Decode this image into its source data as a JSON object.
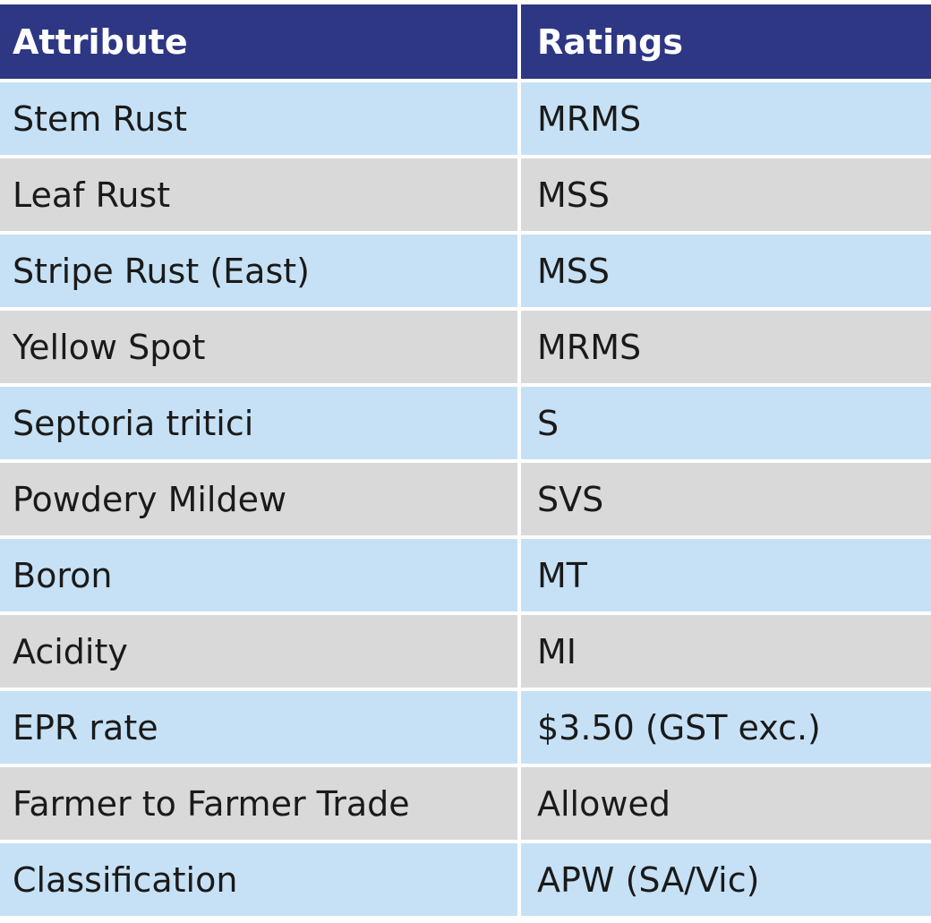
{
  "table": {
    "header": [
      "Attribute",
      "Ratings"
    ],
    "rows": [
      [
        "Stem Rust",
        "MRMS"
      ],
      [
        "Leaf Rust",
        "MSS"
      ],
      [
        "Stripe Rust (East)",
        "MSS"
      ],
      [
        "Yellow Spot",
        "MRMS"
      ],
      [
        "Septoria tritici",
        "S"
      ],
      [
        "Powdery Mildew",
        "SVS"
      ],
      [
        "Boron",
        "MT"
      ],
      [
        "Acidity",
        "MI"
      ],
      [
        "EPR rate",
        "$3.50 (GST exc.)"
      ],
      [
        "Farmer to Farmer Trade",
        "Allowed"
      ],
      [
        "Classification",
        "APW (SA/Vic)"
      ]
    ]
  }
}
